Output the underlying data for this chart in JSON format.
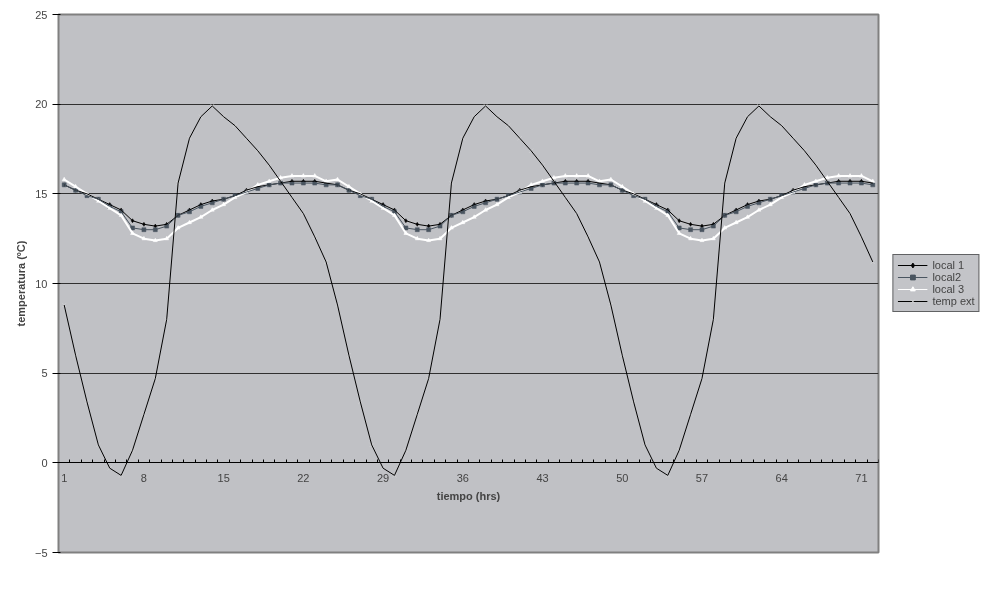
{
  "chart_data": {
    "type": "line",
    "xlabel": "tiempo (hrs)",
    "ylabel": "temperatura (ºC)",
    "categories": [
      "1",
      null,
      null,
      null,
      null,
      null,
      null,
      "8",
      null,
      null,
      null,
      null,
      null,
      null,
      "15",
      null,
      null,
      null,
      null,
      null,
      null,
      "22",
      null,
      null,
      null,
      null,
      null,
      null,
      "29",
      null,
      null,
      null,
      null,
      null,
      null,
      "36",
      null,
      null,
      null,
      null,
      null,
      null,
      "43",
      null,
      null,
      null,
      null,
      null,
      null,
      "50",
      null,
      null,
      null,
      null,
      null,
      null,
      "57",
      null,
      null,
      null,
      null,
      null,
      null,
      "64",
      null,
      null,
      null,
      null,
      null,
      null,
      "71",
      null
    ],
    "series": [
      {
        "name": "local 1",
        "color": "#000000",
        "marker": "diamond",
        "values": [
          15.5,
          15.2,
          15.0,
          14.7,
          14.4,
          14.1,
          13.5,
          13.3,
          13.2,
          13.3,
          13.8,
          14.1,
          14.4,
          14.6,
          14.7,
          14.9,
          15.2,
          15.4,
          15.5,
          15.6,
          15.7,
          15.7,
          15.7,
          15.6,
          15.5,
          15.2,
          15.0,
          14.7,
          14.4,
          14.1,
          13.5,
          13.3,
          13.2,
          13.3,
          13.8,
          14.1,
          14.4,
          14.6,
          14.7,
          14.9,
          15.2,
          15.4,
          15.5,
          15.6,
          15.7,
          15.7,
          15.7,
          15.6,
          15.5,
          15.2,
          15.0,
          14.7,
          14.4,
          14.1,
          13.5,
          13.3,
          13.2,
          13.3,
          13.8,
          14.1,
          14.4,
          14.6,
          14.7,
          14.9,
          15.2,
          15.4,
          15.5,
          15.6,
          15.7,
          15.7,
          15.7,
          15.6
        ]
      },
      {
        "name": "local2",
        "color": "#4a5560",
        "marker": "square",
        "values": [
          15.5,
          15.2,
          14.9,
          14.7,
          14.3,
          14.0,
          13.1,
          13.0,
          13.0,
          13.2,
          13.8,
          14.0,
          14.3,
          14.5,
          14.7,
          14.9,
          15.1,
          15.3,
          15.5,
          15.6,
          15.6,
          15.6,
          15.6,
          15.5,
          15.5,
          15.2,
          14.9,
          14.7,
          14.3,
          14.0,
          13.1,
          13.0,
          13.0,
          13.2,
          13.8,
          14.0,
          14.3,
          14.5,
          14.7,
          14.9,
          15.1,
          15.3,
          15.5,
          15.6,
          15.6,
          15.6,
          15.6,
          15.5,
          15.5,
          15.2,
          14.9,
          14.7,
          14.3,
          14.0,
          13.1,
          13.0,
          13.0,
          13.2,
          13.8,
          14.0,
          14.3,
          14.5,
          14.7,
          14.9,
          15.1,
          15.3,
          15.5,
          15.6,
          15.6,
          15.6,
          15.6,
          15.5
        ]
      },
      {
        "name": "local 3",
        "color": "#ffffff",
        "marker": "triangle",
        "values": [
          15.8,
          15.4,
          15.0,
          14.6,
          14.2,
          13.8,
          12.8,
          12.5,
          12.4,
          12.5,
          13.1,
          13.4,
          13.7,
          14.1,
          14.4,
          14.8,
          15.1,
          15.5,
          15.7,
          15.9,
          16.0,
          16.0,
          16.0,
          15.7,
          15.8,
          15.4,
          15.0,
          14.6,
          14.2,
          13.8,
          12.8,
          12.5,
          12.4,
          12.5,
          13.1,
          13.4,
          13.7,
          14.1,
          14.4,
          14.8,
          15.1,
          15.5,
          15.7,
          15.9,
          16.0,
          16.0,
          16.0,
          15.7,
          15.8,
          15.4,
          15.0,
          14.6,
          14.2,
          13.8,
          12.8,
          12.5,
          12.4,
          12.5,
          13.1,
          13.4,
          13.7,
          14.1,
          14.4,
          14.8,
          15.1,
          15.5,
          15.7,
          15.9,
          16.0,
          16.0,
          16.0,
          15.7
        ]
      },
      {
        "name": "temp ext",
        "color": "#000000",
        "marker": "cross",
        "values": [
          8.8,
          6.0,
          3.4,
          1.0,
          -0.3,
          -0.7,
          0.7,
          2.7,
          4.7,
          8.0,
          15.6,
          18.1,
          19.3,
          19.9,
          19.3,
          18.8,
          18.1,
          17.4,
          16.6,
          15.7,
          14.8,
          13.9,
          12.6,
          11.2,
          8.8,
          6.0,
          3.4,
          1.0,
          -0.3,
          -0.7,
          0.7,
          2.7,
          4.7,
          8.0,
          15.6,
          18.1,
          19.3,
          19.9,
          19.3,
          18.8,
          18.1,
          17.4,
          16.6,
          15.7,
          14.8,
          13.9,
          12.6,
          11.2,
          8.8,
          6.0,
          3.4,
          1.0,
          -0.3,
          -0.7,
          0.7,
          2.7,
          4.7,
          8.0,
          15.6,
          18.1,
          19.3,
          19.9,
          19.3,
          18.8,
          18.1,
          17.4,
          16.6,
          15.7,
          14.8,
          13.9,
          12.6,
          11.2
        ]
      }
    ],
    "ylim": [
      -5,
      25
    ],
    "yticks": [
      -5,
      0,
      5,
      10,
      15,
      20,
      25
    ],
    "grid": "y",
    "legend": "right"
  }
}
